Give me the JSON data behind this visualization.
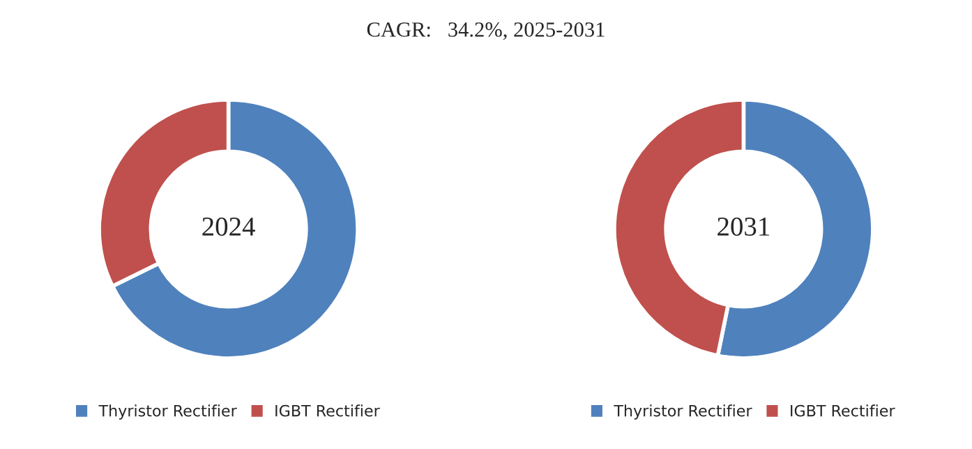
{
  "chart_data": [
    {
      "type": "donut",
      "title": "CAGR:   34.2%, 2025-2031",
      "annotations": [
        "2024"
      ],
      "categories": [
        "Thyristor Rectifier",
        "IGBT Rectifier"
      ],
      "values": [
        67.7,
        32.3
      ],
      "colors": [
        "#4f81bd",
        "#c0504d"
      ],
      "legend": "bottom"
    },
    {
      "type": "donut",
      "annotations": [
        "2031"
      ],
      "categories": [
        "Thyristor Rectifier",
        "IGBT Rectifier"
      ],
      "values": [
        53.2,
        46.8
      ],
      "colors": [
        "#4f81bd",
        "#c0504d"
      ],
      "legend": "bottom"
    }
  ]
}
